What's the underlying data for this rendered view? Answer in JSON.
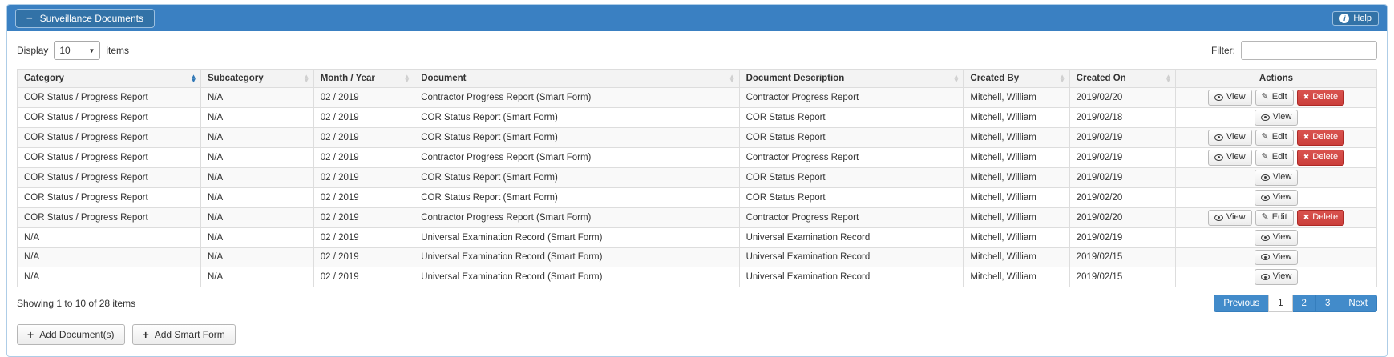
{
  "header": {
    "title": "Surveillance Documents",
    "help_label": "Help"
  },
  "toolbar": {
    "display_label": "Display",
    "display_value": "10",
    "items_label": "items",
    "filter_label": "Filter:",
    "filter_value": ""
  },
  "table": {
    "columns": [
      {
        "label": "Category",
        "sortable": true,
        "sorted": true
      },
      {
        "label": "Subcategory",
        "sortable": true,
        "sorted": false
      },
      {
        "label": "Month / Year",
        "sortable": true,
        "sorted": false
      },
      {
        "label": "Document",
        "sortable": true,
        "sorted": false
      },
      {
        "label": "Document Description",
        "sortable": true,
        "sorted": false
      },
      {
        "label": "Created By",
        "sortable": true,
        "sorted": false
      },
      {
        "label": "Created On",
        "sortable": true,
        "sorted": false
      },
      {
        "label": "Actions",
        "sortable": false,
        "sorted": false
      }
    ],
    "action_labels": {
      "view": "View",
      "edit": "Edit",
      "delete": "Delete"
    },
    "rows": [
      {
        "category": "COR Status / Progress Report",
        "subcategory": "N/A",
        "month_year": "02 / 2019",
        "document": "Contractor Progress Report (Smart Form)",
        "description": "Contractor Progress Report",
        "created_by": "Mitchell, William",
        "created_on": "2019/02/20",
        "actions": [
          "view",
          "edit",
          "delete"
        ]
      },
      {
        "category": "COR Status / Progress Report",
        "subcategory": "N/A",
        "month_year": "02 / 2019",
        "document": "COR Status Report (Smart Form)",
        "description": "COR Status Report",
        "created_by": "Mitchell, William",
        "created_on": "2019/02/18",
        "actions": [
          "view"
        ]
      },
      {
        "category": "COR Status / Progress Report",
        "subcategory": "N/A",
        "month_year": "02 / 2019",
        "document": "COR Status Report (Smart Form)",
        "description": "COR Status Report",
        "created_by": "Mitchell, William",
        "created_on": "2019/02/19",
        "actions": [
          "view",
          "edit",
          "delete"
        ]
      },
      {
        "category": "COR Status / Progress Report",
        "subcategory": "N/A",
        "month_year": "02 / 2019",
        "document": "Contractor Progress Report (Smart Form)",
        "description": "Contractor Progress Report",
        "created_by": "Mitchell, William",
        "created_on": "2019/02/19",
        "actions": [
          "view",
          "edit",
          "delete"
        ]
      },
      {
        "category": "COR Status / Progress Report",
        "subcategory": "N/A",
        "month_year": "02 / 2019",
        "document": "COR Status Report (Smart Form)",
        "description": "COR Status Report",
        "created_by": "Mitchell, William",
        "created_on": "2019/02/19",
        "actions": [
          "view"
        ]
      },
      {
        "category": "COR Status / Progress Report",
        "subcategory": "N/A",
        "month_year": "02 / 2019",
        "document": "COR Status Report (Smart Form)",
        "description": "COR Status Report",
        "created_by": "Mitchell, William",
        "created_on": "2019/02/20",
        "actions": [
          "view"
        ]
      },
      {
        "category": "COR Status / Progress Report",
        "subcategory": "N/A",
        "month_year": "02 / 2019",
        "document": "Contractor Progress Report (Smart Form)",
        "description": "Contractor Progress Report",
        "created_by": "Mitchell, William",
        "created_on": "2019/02/20",
        "actions": [
          "view",
          "edit",
          "delete"
        ]
      },
      {
        "category": "N/A",
        "subcategory": "N/A",
        "month_year": "02 / 2019",
        "document": "Universal Examination Record (Smart Form)",
        "description": "Universal Examination Record",
        "created_by": "Mitchell, William",
        "created_on": "2019/02/19",
        "actions": [
          "view"
        ]
      },
      {
        "category": "N/A",
        "subcategory": "N/A",
        "month_year": "02 / 2019",
        "document": "Universal Examination Record (Smart Form)",
        "description": "Universal Examination Record",
        "created_by": "Mitchell, William",
        "created_on": "2019/02/15",
        "actions": [
          "view"
        ]
      },
      {
        "category": "N/A",
        "subcategory": "N/A",
        "month_year": "02 / 2019",
        "document": "Universal Examination Record (Smart Form)",
        "description": "Universal Examination Record",
        "created_by": "Mitchell, William",
        "created_on": "2019/02/15",
        "actions": [
          "view"
        ]
      }
    ]
  },
  "footer": {
    "summary": "Showing 1 to 10 of 28 items",
    "pagination": {
      "previous": "Previous",
      "pages": [
        "1",
        "2",
        "3"
      ],
      "active_page": "1",
      "next": "Next"
    }
  },
  "buttons": {
    "add_documents": "Add Document(s)",
    "add_smart_form": "Add Smart Form"
  },
  "colors": {
    "heading_blue": "#3a80c2",
    "heading_button_blue": "#3272a7",
    "pagination_blue": "#428bca",
    "danger_red": "#d9534f",
    "panel_border": "#aecde7",
    "sorted_icon_blue": "#2f77b5"
  }
}
